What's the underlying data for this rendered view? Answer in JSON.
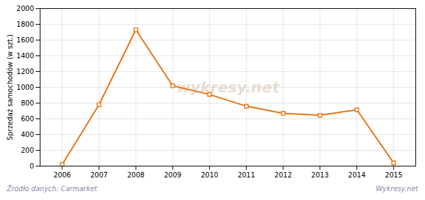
{
  "chart_data": {
    "type": "line",
    "ylabel": "Sprzedaż samochodów (w szt.)",
    "x": [
      2006,
      2007,
      2008,
      2009,
      2010,
      2011,
      2012,
      2013,
      2014,
      2015
    ],
    "values": [
      20,
      780,
      1730,
      1020,
      910,
      760,
      670,
      645,
      715,
      40
    ],
    "color": "#e8720c",
    "marker": "square",
    "xlim": [
      2005.4,
      2015.6
    ],
    "xticks": [
      2006,
      2007,
      2008,
      2009,
      2010,
      2011,
      2012,
      2013,
      2014,
      2015
    ],
    "ylim": [
      0,
      2000
    ],
    "yticks": [
      0,
      200,
      400,
      600,
      800,
      1000,
      1200,
      1400,
      1600,
      1800,
      2000
    ],
    "grid": true,
    "annotations": [
      "wykresy.net",
      "Źródło danych:  Carmarket",
      "Wykresy.net"
    ]
  }
}
